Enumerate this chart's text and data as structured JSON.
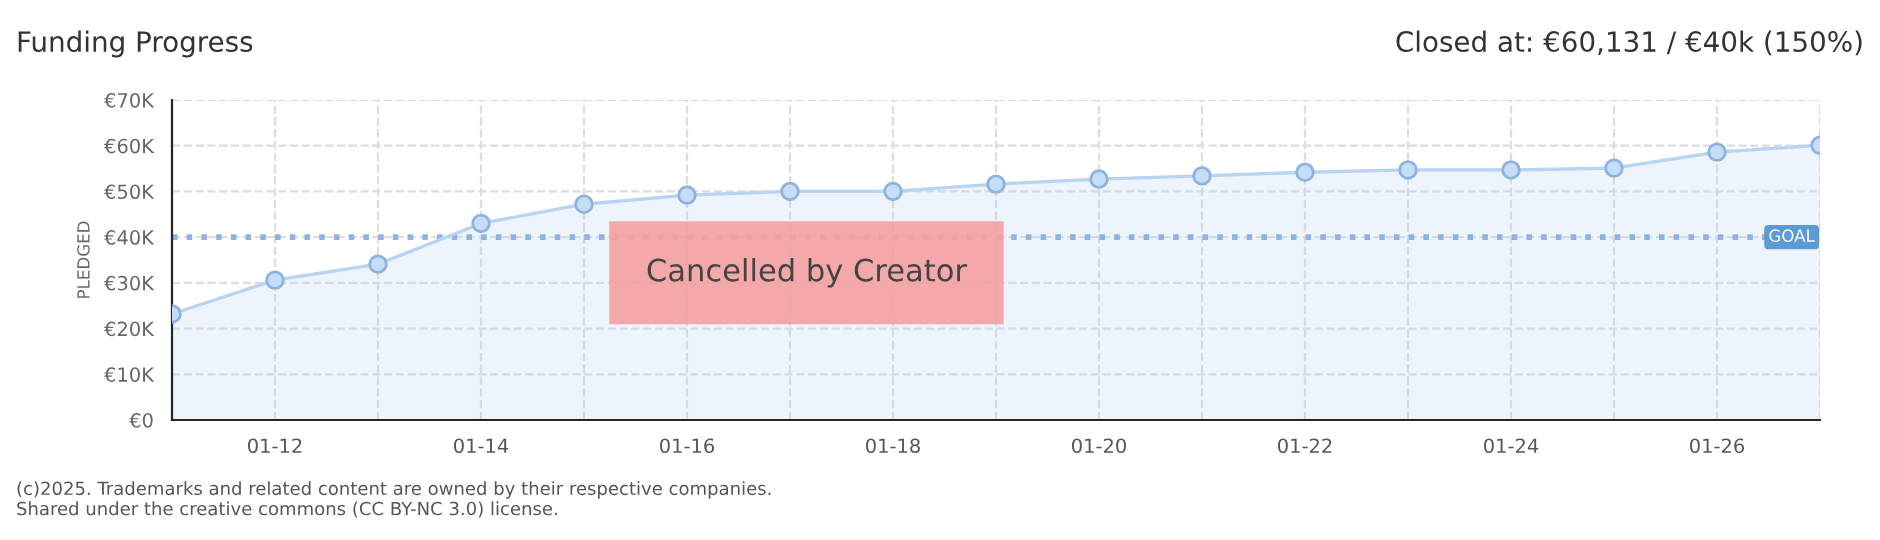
{
  "chart_data": {
    "type": "area",
    "title": "Funding Progress",
    "subtitle": "Closed at: €60,131 / €40k (150%)",
    "ylabel": "PLEDGED",
    "categories": [
      null,
      "01-12",
      null,
      "01-14",
      null,
      "01-16",
      null,
      "01-18",
      null,
      "01-20",
      null,
      "01-22",
      null,
      "01-24",
      null,
      "01-26",
      null
    ],
    "series": [
      {
        "color": "#b8d4f0",
        "values": [
          23.2,
          30.6,
          34.1,
          43,
          47.2,
          49.2,
          50,
          50,
          51.6,
          52.7,
          53.4,
          54.2,
          54.7,
          54.7,
          55.1,
          58.6,
          60.1
        ]
      }
    ],
    "ylim": [
      0,
      70
    ],
    "yticks": [
      {
        "value": 0,
        "label": "€0"
      },
      {
        "value": 10,
        "label": "€10K"
      },
      {
        "value": 20,
        "label": "€20K"
      },
      {
        "value": 30,
        "label": "€30K"
      },
      {
        "value": 40,
        "label": "€40K"
      },
      {
        "value": 50,
        "label": "€50K"
      },
      {
        "value": 60,
        "label": "€60K"
      },
      {
        "value": 70,
        "label": "€70K"
      }
    ],
    "ref_lines": [
      {
        "axis": "y",
        "value": 40,
        "label": "GOAL",
        "color": "#8fb3e0",
        "line_style": "dotted"
      }
    ],
    "annotations": [
      "Cancelled by Creator",
      "(c)2025. Trademarks and related content are owned by their respective companies.\nShared under the creative commons (CC BY-NC 3.0) license."
    ],
    "grid": true,
    "marker": "circle",
    "legend": false
  }
}
